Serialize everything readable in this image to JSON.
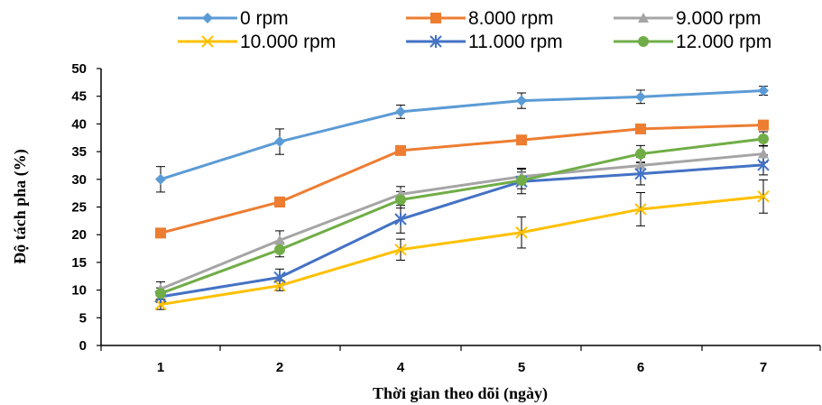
{
  "chart_data": {
    "type": "line",
    "xlabel": "Thời gian theo dõi (ngày)",
    "ylabel": "Độ tách pha (%)",
    "categories": [
      "1",
      "2",
      "4",
      "5",
      "6",
      "7"
    ],
    "ylim": [
      0,
      50
    ],
    "yticks": [
      0,
      5,
      10,
      15,
      20,
      25,
      30,
      35,
      40,
      45,
      50
    ],
    "grid": false,
    "legend_position": "top",
    "series": [
      {
        "name": "0 rpm",
        "color": "#5b9bd5",
        "marker": "diamond",
        "values": [
          30.0,
          36.8,
          42.2,
          44.2,
          44.9,
          46.0
        ],
        "errors": [
          2.3,
          2.3,
          1.2,
          1.4,
          1.2,
          0.8
        ]
      },
      {
        "name": "8.000 rpm",
        "color": "#ed7d31",
        "marker": "square",
        "values": [
          20.3,
          25.9,
          35.2,
          37.1,
          39.1,
          39.8
        ],
        "errors": [
          0.3,
          0.9,
          0.7,
          0.8,
          0.7,
          0.6
        ]
      },
      {
        "name": "9.000 rpm",
        "color": "#a5a5a5",
        "marker": "triangle",
        "values": [
          10.2,
          19.0,
          27.3,
          30.5,
          32.5,
          34.6
        ],
        "errors": [
          1.3,
          1.7,
          1.4,
          1.5,
          1.5,
          1.5
        ]
      },
      {
        "name": "10.000 rpm",
        "color": "#ffc000",
        "marker": "x",
        "values": [
          7.4,
          10.8,
          17.3,
          20.4,
          24.6,
          26.9
        ],
        "errors": [
          0.9,
          0.9,
          1.9,
          2.8,
          3.0,
          3.0
        ]
      },
      {
        "name": "11.000 rpm",
        "color": "#4472c4",
        "marker": "star",
        "values": [
          8.8,
          12.3,
          22.8,
          29.6,
          31.0,
          32.6
        ],
        "errors": [
          1.0,
          1.5,
          2.5,
          2.2,
          2.0,
          1.8
        ]
      },
      {
        "name": "12.000 rpm",
        "color": "#70ad47",
        "marker": "circle",
        "values": [
          9.4,
          17.3,
          26.3,
          29.8,
          34.6,
          37.3
        ],
        "errors": [
          1.0,
          1.3,
          1.5,
          1.5,
          1.5,
          1.3
        ]
      }
    ]
  }
}
